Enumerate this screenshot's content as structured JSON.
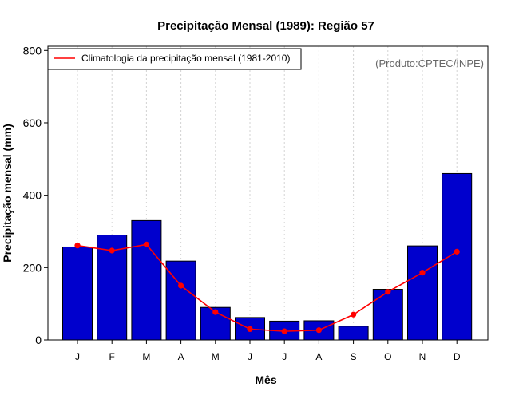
{
  "chart_data": {
    "type": "bar",
    "title": "Precipitação Mensal (1989): Região 57",
    "xlabel": "Mês",
    "ylabel": "Precipitação mensal (mm)",
    "ylim": [
      0,
      800
    ],
    "yticks": [
      0,
      200,
      400,
      600,
      800
    ],
    "categories": [
      "J",
      "F",
      "M",
      "A",
      "M",
      "J",
      "J",
      "A",
      "S",
      "O",
      "N",
      "D"
    ],
    "series": [
      {
        "name": "Precipitação mensal (1989)",
        "type": "bar",
        "values": [
          257,
          290,
          330,
          218,
          90,
          62,
          52,
          53,
          38,
          140,
          260,
          460
        ]
      },
      {
        "name": "Climatologia da precipitação mensal (1981-2010)",
        "type": "line",
        "values": [
          261,
          247,
          264,
          150,
          77,
          30,
          24,
          27,
          70,
          133,
          186,
          244
        ]
      }
    ],
    "legend": {
      "position": "top-left",
      "entries": [
        "Climatologia da precipitação mensal (1981-2010)"
      ]
    },
    "source_note": "(Produto:CPTEC/INPE)",
    "colors": {
      "bar_fill": "#0000cd",
      "bar_stroke": "#000000",
      "line": "#ff0000",
      "grid": "#d3d3d3"
    }
  }
}
